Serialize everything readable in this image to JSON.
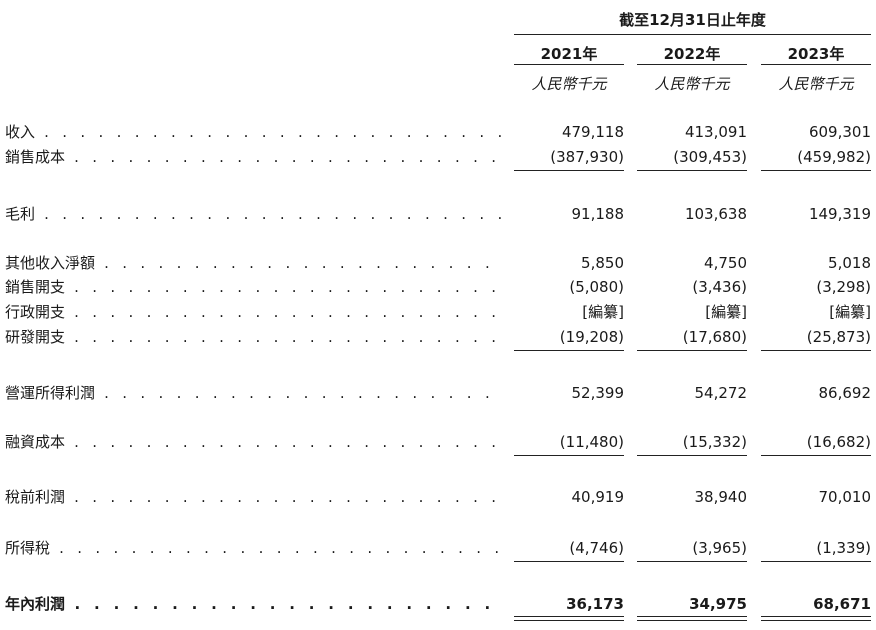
{
  "header": {
    "period": "截至12月31日止年度",
    "years": [
      "2021年",
      "2022年",
      "2023年"
    ],
    "unit": "人民幣千元"
  },
  "rows": [
    {
      "label": "收入",
      "values": [
        "479,118",
        "413,091",
        "609,301"
      ],
      "bold": false
    },
    {
      "label": "銷售成本",
      "values": [
        "(387,930)",
        "(309,453)",
        "(459,982)"
      ],
      "bold": false
    },
    {
      "label": "毛利",
      "values": [
        "91,188",
        "103,638",
        "149,319"
      ],
      "bold": false
    },
    {
      "label": "其他收入淨額",
      "values": [
        "5,850",
        "4,750",
        "5,018"
      ],
      "bold": false
    },
    {
      "label": "銷售開支",
      "values": [
        "(5,080)",
        "(3,436)",
        "(3,298)"
      ],
      "bold": false
    },
    {
      "label": "行政開支",
      "values": [
        "[編纂]",
        "[編纂]",
        "[編纂]"
      ],
      "bold": false
    },
    {
      "label": "研發開支",
      "values": [
        "(19,208)",
        "(17,680)",
        "(25,873)"
      ],
      "bold": false
    },
    {
      "label": "營運所得利潤",
      "values": [
        "52,399",
        "54,272",
        "86,692"
      ],
      "bold": false
    },
    {
      "label": "融資成本",
      "values": [
        "(11,480)",
        "(15,332)",
        "(16,682)"
      ],
      "bold": false
    },
    {
      "label": "稅前利潤",
      "values": [
        "40,919",
        "38,940",
        "70,010"
      ],
      "bold": false
    },
    {
      "label": "所得稅",
      "values": [
        "(4,746)",
        "(3,965)",
        "(1,339)"
      ],
      "bold": false
    },
    {
      "label": "年內利潤",
      "values": [
        "36,173",
        "34,975",
        "68,671"
      ],
      "bold": true
    }
  ]
}
